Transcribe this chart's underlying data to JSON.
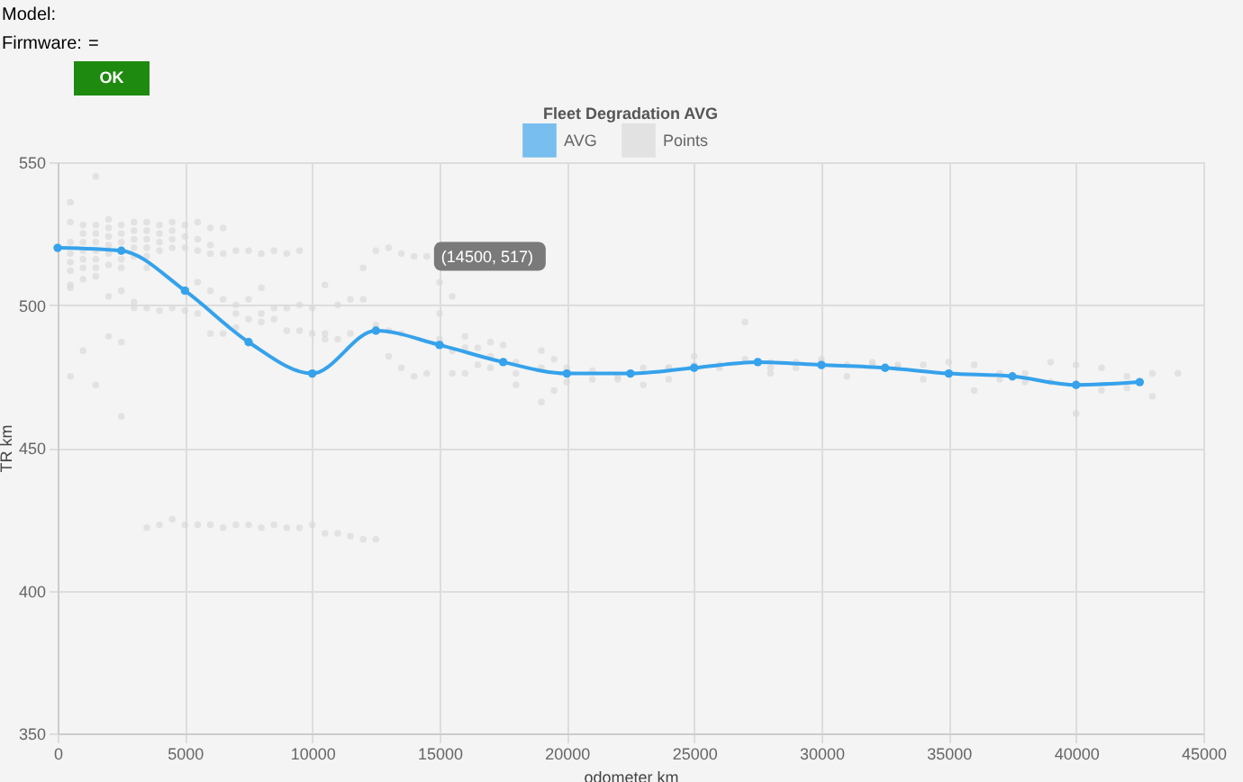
{
  "chart_data": {
    "type": "line",
    "title": "Fleet Degradation AVG",
    "xlabel": "odometer km",
    "ylabel": "TR km",
    "xlim": [
      0,
      45000
    ],
    "xticks": [
      0,
      5000,
      10000,
      15000,
      20000,
      25000,
      30000,
      35000,
      40000,
      45000
    ],
    "ylim": [
      350,
      550
    ],
    "yticks": [
      350,
      400,
      450,
      500,
      550
    ],
    "grid": true,
    "legend": "top",
    "annotations": [
      "Model:",
      "Firmware:",
      "=",
      "OK",
      {
        "text": "(14500, 517)",
        "x": 14500,
        "y": 517
      }
    ],
    "series": [
      {
        "name": "AVG",
        "color": "#36a2eb",
        "marker": "circle",
        "line_style": "solid",
        "x": [
          0,
          2500,
          5000,
          7500,
          10000,
          12500,
          15000,
          17500,
          20000,
          22500,
          25000,
          27500,
          30000,
          32500,
          35000,
          37500,
          40000,
          42500
        ],
        "values": [
          520,
          519,
          505,
          487,
          476,
          491,
          486,
          480,
          476,
          476,
          478,
          480,
          479,
          478,
          476,
          475,
          472,
          473
        ]
      },
      {
        "name": "Points",
        "type": "scatter",
        "color": "#d9d9d9",
        "marker": "circle",
        "x": [
          500,
          500,
          500,
          500,
          500,
          500,
          500,
          500,
          500,
          1000,
          1000,
          1000,
          1000,
          1000,
          1000,
          1000,
          1000,
          1500,
          1500,
          1500,
          1500,
          1500,
          1500,
          1500,
          1500,
          1500,
          2000,
          2000,
          2000,
          2000,
          2000,
          2000,
          2000,
          2000,
          2500,
          2500,
          2500,
          2500,
          2500,
          2500,
          2500,
          2500,
          3000,
          3000,
          3000,
          3000,
          3000,
          3000,
          3000,
          3500,
          3500,
          3500,
          3500,
          3500,
          3500,
          3500,
          4000,
          4000,
          4000,
          4000,
          4000,
          4500,
          4500,
          4500,
          4500,
          4500,
          5000,
          5000,
          5000,
          5000,
          5500,
          5500,
          5500,
          5500,
          5500,
          6000,
          6000,
          6000,
          6000,
          6000,
          6500,
          6500,
          6500,
          6500,
          7000,
          7000,
          7000,
          7000,
          7500,
          7500,
          7500,
          8000,
          8000,
          8000,
          8000,
          8500,
          8500,
          8500,
          9000,
          9000,
          9000,
          9500,
          9500,
          9500,
          10000,
          10000,
          10500,
          10500,
          10500,
          11000,
          11000,
          11500,
          11500,
          12000,
          12000,
          12500,
          12500,
          13000,
          13000,
          13000,
          13500,
          13500,
          13500,
          14000,
          14000,
          14500,
          14500,
          15000,
          15000,
          15000,
          15000,
          15500,
          15500,
          15500,
          16000,
          16000,
          16000,
          16500,
          16500,
          17000,
          17000,
          17000,
          17500,
          18000,
          18000,
          18000,
          19000,
          19000,
          19000,
          19500,
          19500,
          20000,
          20000,
          21000,
          21000,
          22000,
          22000,
          23000,
          23000,
          24000,
          24000,
          24000,
          25000,
          25000,
          26000,
          26000,
          27000,
          27000,
          28000,
          28000,
          28000,
          29000,
          29000,
          30000,
          30000,
          31000,
          31000,
          32000,
          32000,
          33000,
          33000,
          34000,
          34000,
          35000,
          36000,
          36000,
          37000,
          37000,
          38000,
          38000,
          39000,
          39000,
          40000,
          40000,
          41000,
          41000,
          42000,
          42000,
          43000,
          43000,
          44000,
          3500,
          4000,
          4500,
          5000,
          5500,
          6000,
          6500,
          7000,
          7500,
          8000,
          8500,
          9000,
          9500,
          10000,
          10500,
          11000,
          11500,
          12000,
          12500
        ],
        "values": [
          536,
          529,
          522,
          518,
          515,
          512,
          507,
          506,
          475,
          528,
          525,
          522,
          519,
          516,
          513,
          509,
          484,
          545,
          528,
          525,
          522,
          519,
          516,
          513,
          510,
          472,
          530,
          527,
          524,
          521,
          518,
          514,
          503,
          489,
          528,
          525,
          522,
          516,
          513,
          505,
          461,
          487,
          529,
          526,
          523,
          520,
          517,
          501,
          499,
          529,
          526,
          523,
          520,
          517,
          513,
          499,
          528,
          525,
          522,
          519,
          498,
          529,
          526,
          523,
          520,
          499,
          528,
          524,
          520,
          498,
          529,
          523,
          519,
          508,
          497,
          527,
          521,
          518,
          505,
          490,
          527,
          518,
          502,
          490,
          519,
          500,
          497,
          492,
          519,
          502,
          495,
          518,
          506,
          497,
          494,
          519,
          499,
          495,
          518,
          499,
          491,
          519,
          500,
          491,
          499,
          490,
          507,
          490,
          488,
          500,
          488,
          502,
          490,
          513,
          502,
          519,
          493,
          520,
          491,
          482,
          518,
          490,
          478,
          517,
          475,
          517,
          476,
          521,
          508,
          497,
          488,
          503,
          484,
          476,
          489,
          485,
          476,
          485,
          479,
          487,
          478,
          482,
          486,
          476,
          480,
          472,
          478,
          484,
          466,
          470,
          481,
          478,
          473,
          477,
          474,
          475,
          474,
          478,
          472,
          478,
          474,
          478,
          482,
          479,
          479,
          478,
          494,
          481,
          480,
          478,
          476,
          480,
          478,
          481,
          480,
          479,
          475,
          480,
          479,
          479,
          478,
          479,
          474,
          480,
          479,
          470,
          476,
          474,
          476,
          473,
          480,
          473,
          479,
          462,
          478,
          470,
          475,
          471,
          476,
          468,
          476,
          422,
          423,
          425,
          423,
          423,
          423,
          422,
          423,
          423,
          422,
          423,
          422,
          422,
          423,
          420,
          420,
          419,
          418,
          418
        ]
      }
    ]
  }
}
